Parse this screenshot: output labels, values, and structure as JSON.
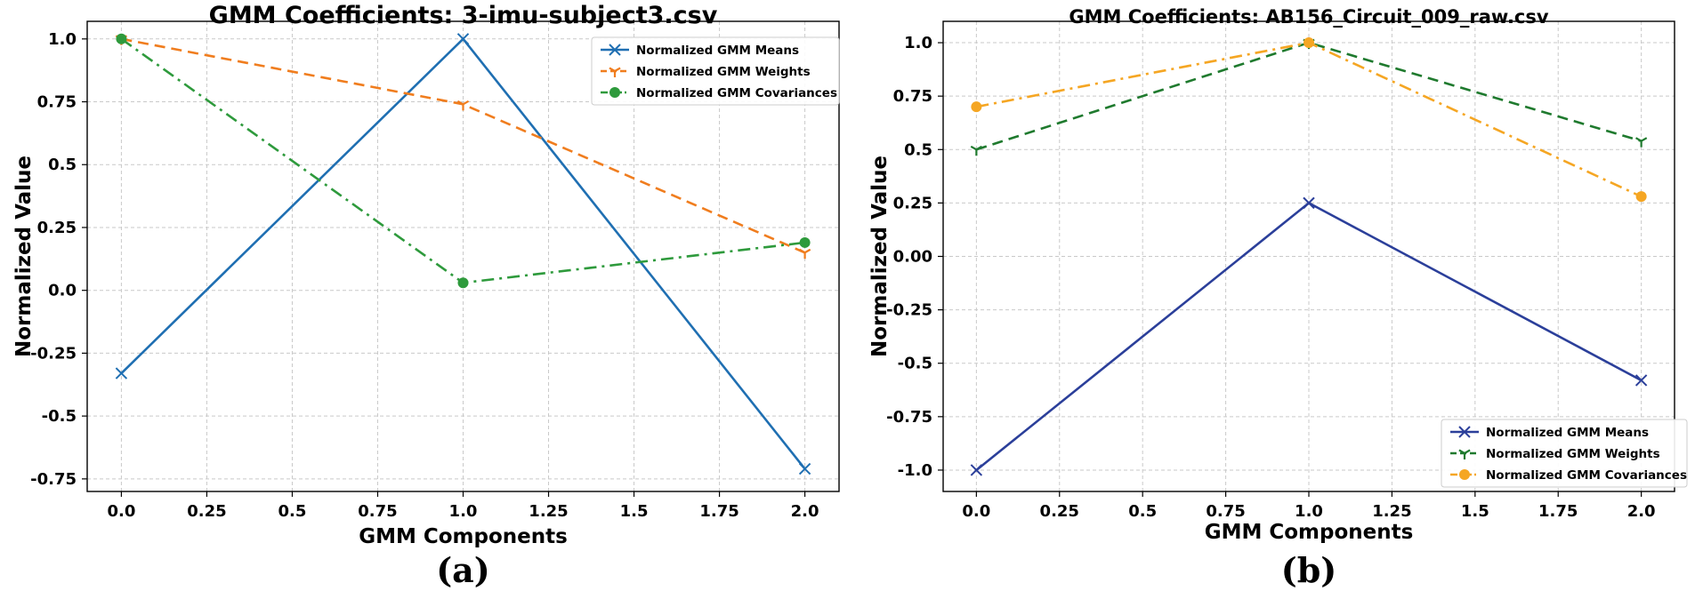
{
  "chart_data": [
    {
      "type": "line",
      "panel_label": "(a)",
      "title": "GMM Coefficients: 3-imu-subject3.csv",
      "xlabel": "GMM Components",
      "ylabel": "Normalized Value",
      "xlim": [
        -0.1,
        2.1
      ],
      "ylim": [
        -0.8,
        1.07
      ],
      "xticks": [
        0.0,
        0.25,
        0.5,
        0.75,
        1.0,
        1.25,
        1.5,
        1.75,
        2.0
      ],
      "xtick_labels": [
        "0.0",
        "0.25",
        "0.5",
        "0.75",
        "1.0",
        "1.25",
        "1.5",
        "1.75",
        "2.0"
      ],
      "yticks": [
        1.0,
        0.75,
        0.5,
        0.25,
        0.0,
        -0.25,
        -0.5,
        -0.75
      ],
      "ytick_labels": [
        "1.0",
        "0.75",
        "0.5",
        "0.25",
        "0.0",
        "-0.25",
        "-0.5",
        "-0.75"
      ],
      "grid": true,
      "legend_position": "top-right",
      "x": [
        0.0,
        1.0,
        2.0
      ],
      "series": [
        {
          "name": "Normalized GMM Means",
          "values": [
            -0.33,
            1.0,
            -0.71
          ],
          "color": "#1f6fb2",
          "dash": "solid",
          "marker": "x"
        },
        {
          "name": "Normalized GMM Weights",
          "values": [
            1.0,
            0.74,
            0.15
          ],
          "color": "#f07d1e",
          "dash": "dashed",
          "marker": "tri"
        },
        {
          "name": "Normalized GMM Covariances",
          "values": [
            1.0,
            0.03,
            0.19
          ],
          "color": "#2e9a3c",
          "dash": "dashdot",
          "marker": "circle"
        }
      ]
    },
    {
      "type": "line",
      "panel_label": "(b)",
      "title": "GMM Coefficients: AB156_Circuit_009_raw.csv",
      "xlabel": "GMM Components",
      "ylabel": "Normalized Value",
      "xlim": [
        -0.1,
        2.1
      ],
      "ylim": [
        -1.1,
        1.1
      ],
      "xticks": [
        0.0,
        0.25,
        0.5,
        0.75,
        1.0,
        1.25,
        1.5,
        1.75,
        2.0
      ],
      "xtick_labels": [
        "0.0",
        "0.25",
        "0.5",
        "0.75",
        "1.0",
        "1.25",
        "1.5",
        "1.75",
        "2.0"
      ],
      "yticks": [
        1.0,
        0.75,
        0.5,
        0.25,
        0.0,
        -0.25,
        -0.5,
        -0.75,
        -1.0
      ],
      "ytick_labels": [
        "1.0",
        "0.75",
        "0.5",
        "0.25",
        "0.00",
        "-0.25",
        "-0.5",
        "-0.75",
        "-1.0"
      ],
      "grid": true,
      "legend_position": "bottom-right",
      "x": [
        0.0,
        1.0,
        2.0
      ],
      "series": [
        {
          "name": "Normalized GMM Means",
          "values": [
            -1.0,
            0.25,
            -0.58
          ],
          "color": "#2b3f9a",
          "dash": "solid",
          "marker": "x"
        },
        {
          "name": "Normalized GMM Weights",
          "values": [
            0.5,
            1.0,
            0.54
          ],
          "color": "#1f7a2e",
          "dash": "dashed",
          "marker": "tri"
        },
        {
          "name": "Normalized GMM Covariances",
          "values": [
            0.7,
            1.0,
            0.28
          ],
          "color": "#f5a623",
          "dash": "dashdot",
          "marker": "circle"
        }
      ]
    }
  ]
}
